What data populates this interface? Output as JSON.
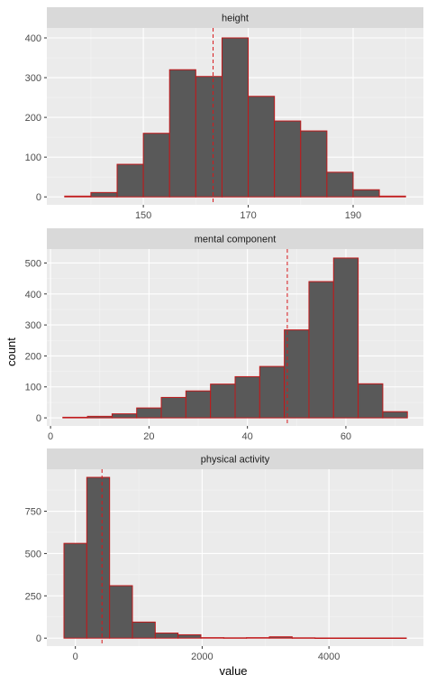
{
  "chart_data": {
    "type": "bar",
    "subtype": "faceted-histogram",
    "xlabel": "value",
    "ylabel": "count",
    "facet_scales": "free",
    "colors": {
      "panel_bg": "#ebebeb",
      "strip_bg": "#d9d9d9",
      "grid_major": "#ffffff",
      "grid_minor": "#f4f4f4",
      "bar_fill": "#595959",
      "bar_outline": "#c0191b",
      "mean_line": "#d7191c",
      "tick_mark": "#333333"
    },
    "facets": [
      {
        "name": "height",
        "bin_centers": [
          137.5,
          142.5,
          147.5,
          152.5,
          157.5,
          162.5,
          167.5,
          172.5,
          177.5,
          182.5,
          187.5,
          192.5,
          197.5
        ],
        "bin_width": 5,
        "counts": [
          2,
          11,
          82,
          160,
          320,
          303,
          400,
          253,
          191,
          166,
          62,
          18,
          2
        ],
        "mean_line": 163.3,
        "xlim": [
          131.6,
          203.4
        ],
        "ylim": [
          -20,
          425
        ],
        "x_ticks": [
          150,
          170,
          190
        ],
        "y_ticks": [
          0,
          100,
          200,
          300,
          400
        ]
      },
      {
        "name": "mental component",
        "bin_centers": [
          5,
          10,
          15,
          20,
          25,
          30,
          35,
          40,
          45,
          50,
          55,
          60,
          65,
          70
        ],
        "bin_width": 5,
        "counts": [
          2,
          5,
          13,
          32,
          66,
          87,
          109,
          133,
          166,
          284,
          440,
          516,
          110,
          20
        ],
        "mean_line": 48.1,
        "xlim": [
          -0.75,
          75.75
        ],
        "ylim": [
          -26,
          545
        ],
        "x_ticks": [
          0,
          20,
          40,
          60
        ],
        "y_ticks": [
          0,
          100,
          200,
          300,
          400,
          500
        ]
      },
      {
        "name": "physical activity",
        "bin_centers": [
          0,
          360,
          720,
          1080,
          1440,
          1800,
          2160,
          2520,
          2880,
          3240,
          3600,
          3960,
          4320,
          4680,
          5040
        ],
        "bin_width": 360,
        "counts": [
          560,
          950,
          310,
          95,
          30,
          20,
          3,
          2,
          3,
          8,
          2,
          1,
          1,
          1,
          1
        ],
        "mean_line": 420,
        "xlim": [
          -450,
          5490
        ],
        "ylim": [
          -47,
          998
        ],
        "x_ticks": [
          0,
          2000,
          4000
        ],
        "y_ticks": [
          0,
          250,
          500,
          750
        ]
      }
    ]
  }
}
